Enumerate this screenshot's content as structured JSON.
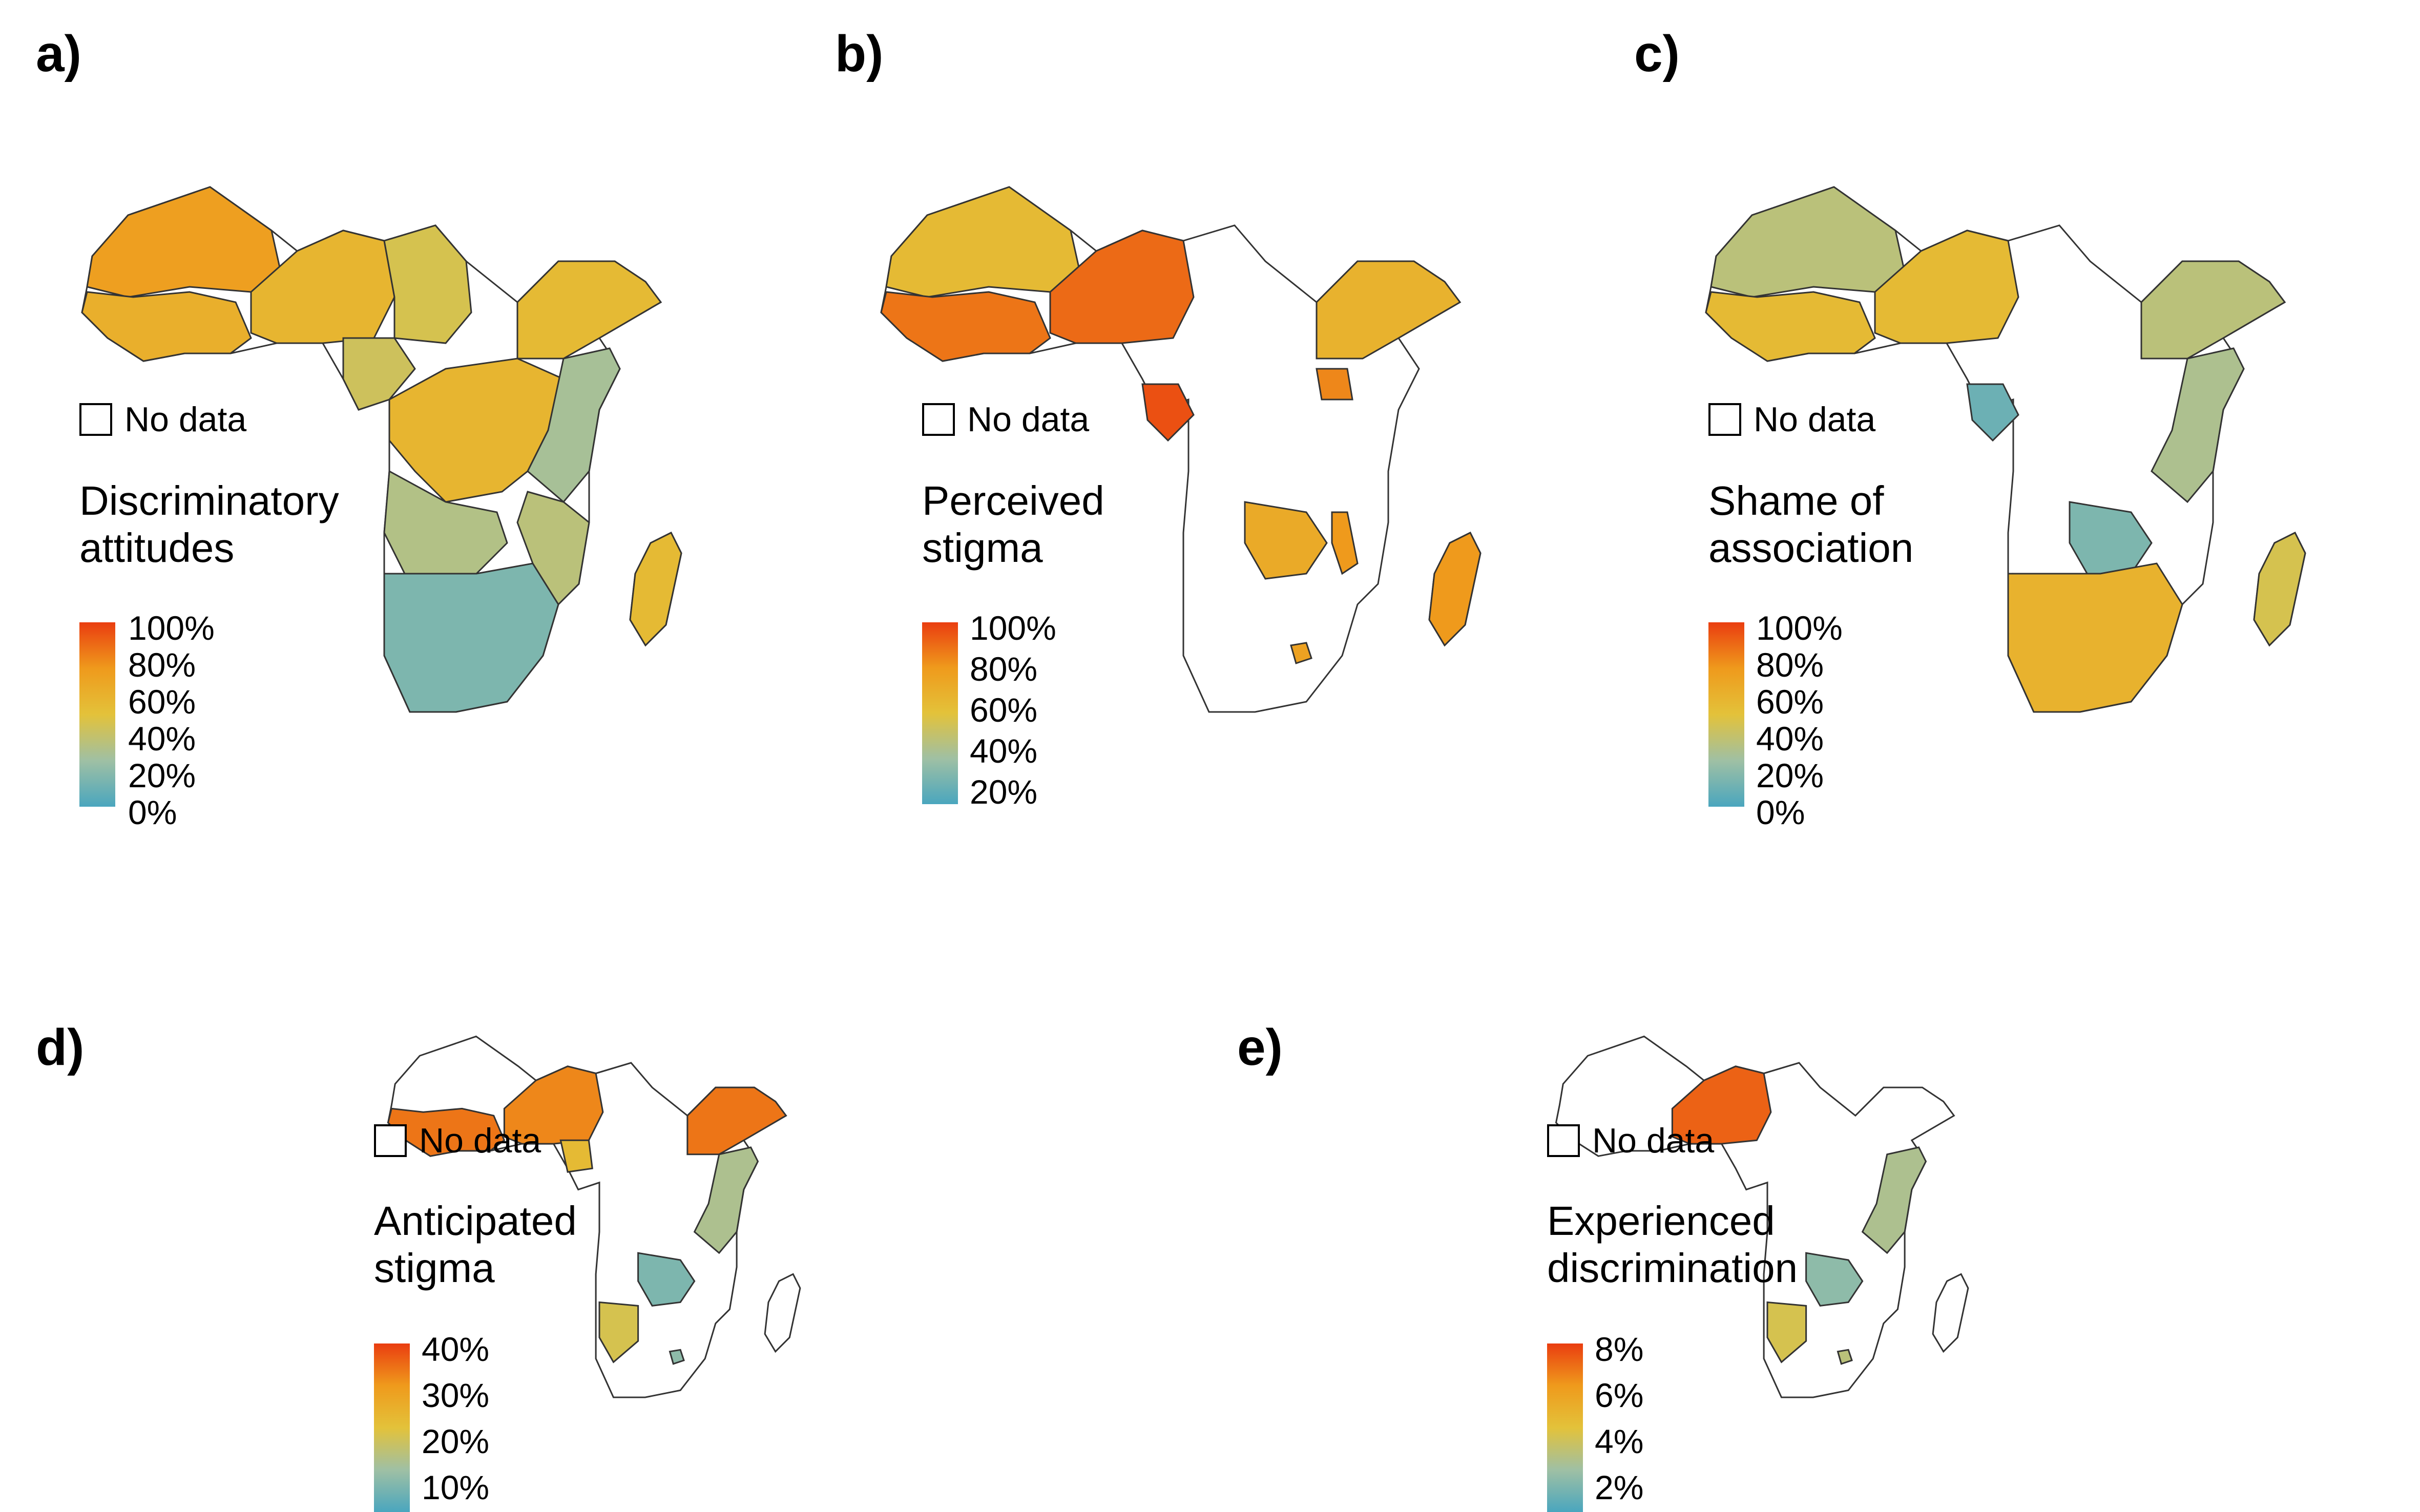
{
  "colors": {
    "blue": "#4aa6be",
    "green": "#9fc0a4",
    "yellow": "#e3c23a",
    "orange": "#ef9a1c",
    "red": "#ea3d10",
    "outline": "#333333",
    "empty": "#ffffff"
  },
  "no_data_label": "No data",
  "panels": [
    {
      "label": "a)",
      "legend_title": "Discriminatory\nattitudes",
      "ticks": [
        "100%",
        "80%",
        "60%",
        "40%",
        "20%",
        "0%"
      ],
      "regions": {
        "west_north": 0.72,
        "west_coast": 0.62,
        "sahel_center": 0.58,
        "sahel_east": 0.45,
        "central_north": 0.42,
        "congo_basin": 0.58,
        "horn": 0.55,
        "east": 0.28,
        "angola": 0.32,
        "southern": 0.15,
        "mozambique": 0.35,
        "madagascar": 0.55
      }
    },
    {
      "label": "b)",
      "legend_title": "Perceived\nstigma",
      "ticks": [
        "100%",
        "80%",
        "60%",
        "40%",
        "20%"
      ],
      "regions": {
        "west_north": 0.55,
        "west_coast": 0.85,
        "sahel_center": 0.88,
        "gabon": 0.95,
        "horn": 0.6,
        "uganda": 0.8,
        "zambia_zim": 0.65,
        "malawi": 0.75,
        "madagascar": 0.75,
        "lesotho": 0.7
      }
    },
    {
      "label": "c)",
      "legend_title": "Shame of\nassociation",
      "ticks": [
        "100%",
        "80%",
        "60%",
        "40%",
        "20%",
        "0%"
      ],
      "regions": {
        "west_north": 0.35,
        "west_coast": 0.55,
        "sahel_center": 0.55,
        "gabon": 0.1,
        "horn": 0.35,
        "east": 0.3,
        "zambia_zim": 0.15,
        "namibia": 0.45,
        "southern": 0.6,
        "madagascar": 0.45
      }
    },
    {
      "label": "d)",
      "legend_title": "Anticipated\nstigma",
      "ticks": [
        "40%",
        "30%",
        "20%",
        "10%"
      ],
      "regions": {
        "west_coast": 0.85,
        "sahel_center": 0.8,
        "cameroon": 0.55,
        "horn": 0.85,
        "east": 0.3,
        "zambia_zim": 0.15,
        "namibia": 0.45,
        "lesotho": 0.2
      }
    },
    {
      "label": "e)",
      "legend_title": "Experienced\ndiscrimination",
      "ticks": [
        "8%",
        "6%",
        "4%",
        "2%"
      ],
      "regions": {
        "sahel_center": 0.9,
        "east": 0.3,
        "zambia_zim": 0.2,
        "namibia": 0.45,
        "lesotho": 0.35
      }
    }
  ]
}
